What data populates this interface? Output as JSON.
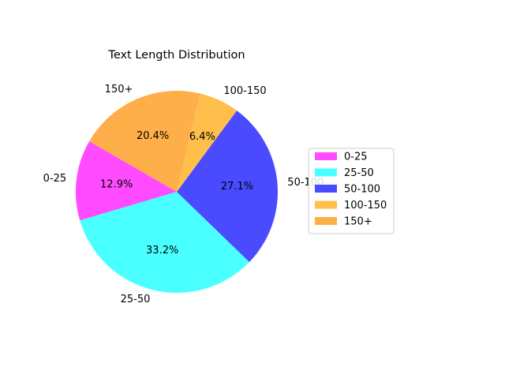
{
  "chart_data": {
    "type": "pie",
    "title": "Text Length Distribution",
    "categories": [
      "0-25",
      "25-50",
      "50-100",
      "100-150",
      "150+"
    ],
    "values": [
      12.9,
      33.2,
      27.1,
      6.4,
      20.4
    ],
    "value_labels": [
      "12.9%",
      "33.2%",
      "27.1%",
      "6.4%",
      "20.4%"
    ],
    "colors": [
      "#ff4aff",
      "#4affff",
      "#4a4aff",
      "#ffbf4a",
      "#ffaf4a"
    ],
    "start_angle_deg": 150,
    "direction": "counterclockwise",
    "legend": {
      "placement": "right",
      "entries": [
        "0-25",
        "25-50",
        "50-100",
        "100-150",
        "150+"
      ]
    }
  }
}
